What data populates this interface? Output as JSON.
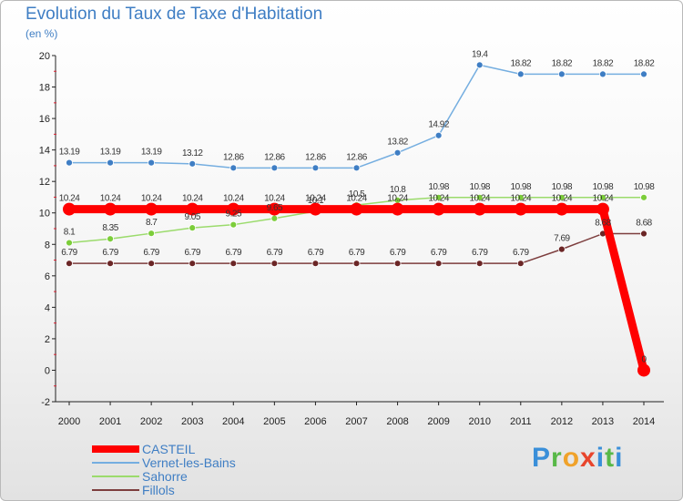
{
  "header": {
    "title": "Evolution du Taux de Taxe d'Habitation",
    "subtitle": "(en %)"
  },
  "logo": {
    "text": "Proxiti"
  },
  "chart_data": {
    "type": "line",
    "title": "Evolution du Taux de Taxe d'Habitation",
    "ylabel": "(en %)",
    "xlabel": "",
    "ylim": [
      -2,
      20
    ],
    "yticks": [
      -2,
      0,
      2,
      4,
      6,
      8,
      10,
      12,
      14,
      16,
      18,
      20
    ],
    "grid": false,
    "legend_position": "bottom-left",
    "categories": [
      "2000",
      "2001",
      "2002",
      "2003",
      "2004",
      "2005",
      "2006",
      "2007",
      "2008",
      "2009",
      "2010",
      "2011",
      "2012",
      "2013",
      "2014"
    ],
    "series": [
      {
        "name": "CASTEIL",
        "color": "#ff0000",
        "emphasis": true,
        "values": [
          10.24,
          10.24,
          10.24,
          10.24,
          10.24,
          10.24,
          10.24,
          10.24,
          10.24,
          10.24,
          10.24,
          10.24,
          10.24,
          10.24,
          0
        ],
        "labels": [
          "10.24",
          "10.24",
          "10.24",
          "10.24",
          "10.24",
          "10.24",
          "10.24",
          "10.24",
          "10.24",
          "10.24",
          "10.24",
          "10.24",
          "10.24",
          "10.24",
          "0"
        ]
      },
      {
        "name": "Vernet-les-Bains",
        "color": "#75aee0",
        "marker_color": "#3f7ec4",
        "values": [
          13.19,
          13.19,
          13.19,
          13.12,
          12.86,
          12.86,
          12.86,
          12.86,
          13.82,
          14.92,
          19.4,
          18.82,
          18.82,
          18.82,
          18.82
        ],
        "labels": [
          "13.19",
          "13.19",
          "13.19",
          "13.12",
          "12.86",
          "12.86",
          "12.86",
          "12.86",
          "13.82",
          "14.92",
          "19.4",
          "18.82",
          "18.82",
          "18.82",
          "18.82"
        ]
      },
      {
        "name": "Sahorre",
        "color": "#9bdb6c",
        "marker_color": "#7ccd3a",
        "values": [
          8.1,
          8.35,
          8.7,
          9.05,
          9.25,
          9.65,
          10.1,
          10.5,
          10.8,
          10.98,
          10.98,
          10.98,
          10.98,
          10.98,
          10.98
        ],
        "labels": [
          "8.1",
          "8.35",
          "8.7",
          "9.05",
          "9.25",
          "9.65",
          "10.1",
          "10.5",
          "10.8",
          "10.98",
          "10.98",
          "10.98",
          "10.98",
          "10.98",
          "10.98"
        ]
      },
      {
        "name": "Fillols",
        "color": "#7d3e3e",
        "marker_color": "#6b2626",
        "values": [
          6.79,
          6.79,
          6.79,
          6.79,
          6.79,
          6.79,
          6.79,
          6.79,
          6.79,
          6.79,
          6.79,
          6.79,
          7.69,
          8.68,
          8.68
        ],
        "labels": [
          "6.79",
          "6.79",
          "6.79",
          "6.79",
          "6.79",
          "6.79",
          "6.79",
          "6.79",
          "6.79",
          "6.79",
          "6.79",
          "6.79",
          "7.69",
          "8.68",
          "8.68"
        ]
      }
    ]
  }
}
